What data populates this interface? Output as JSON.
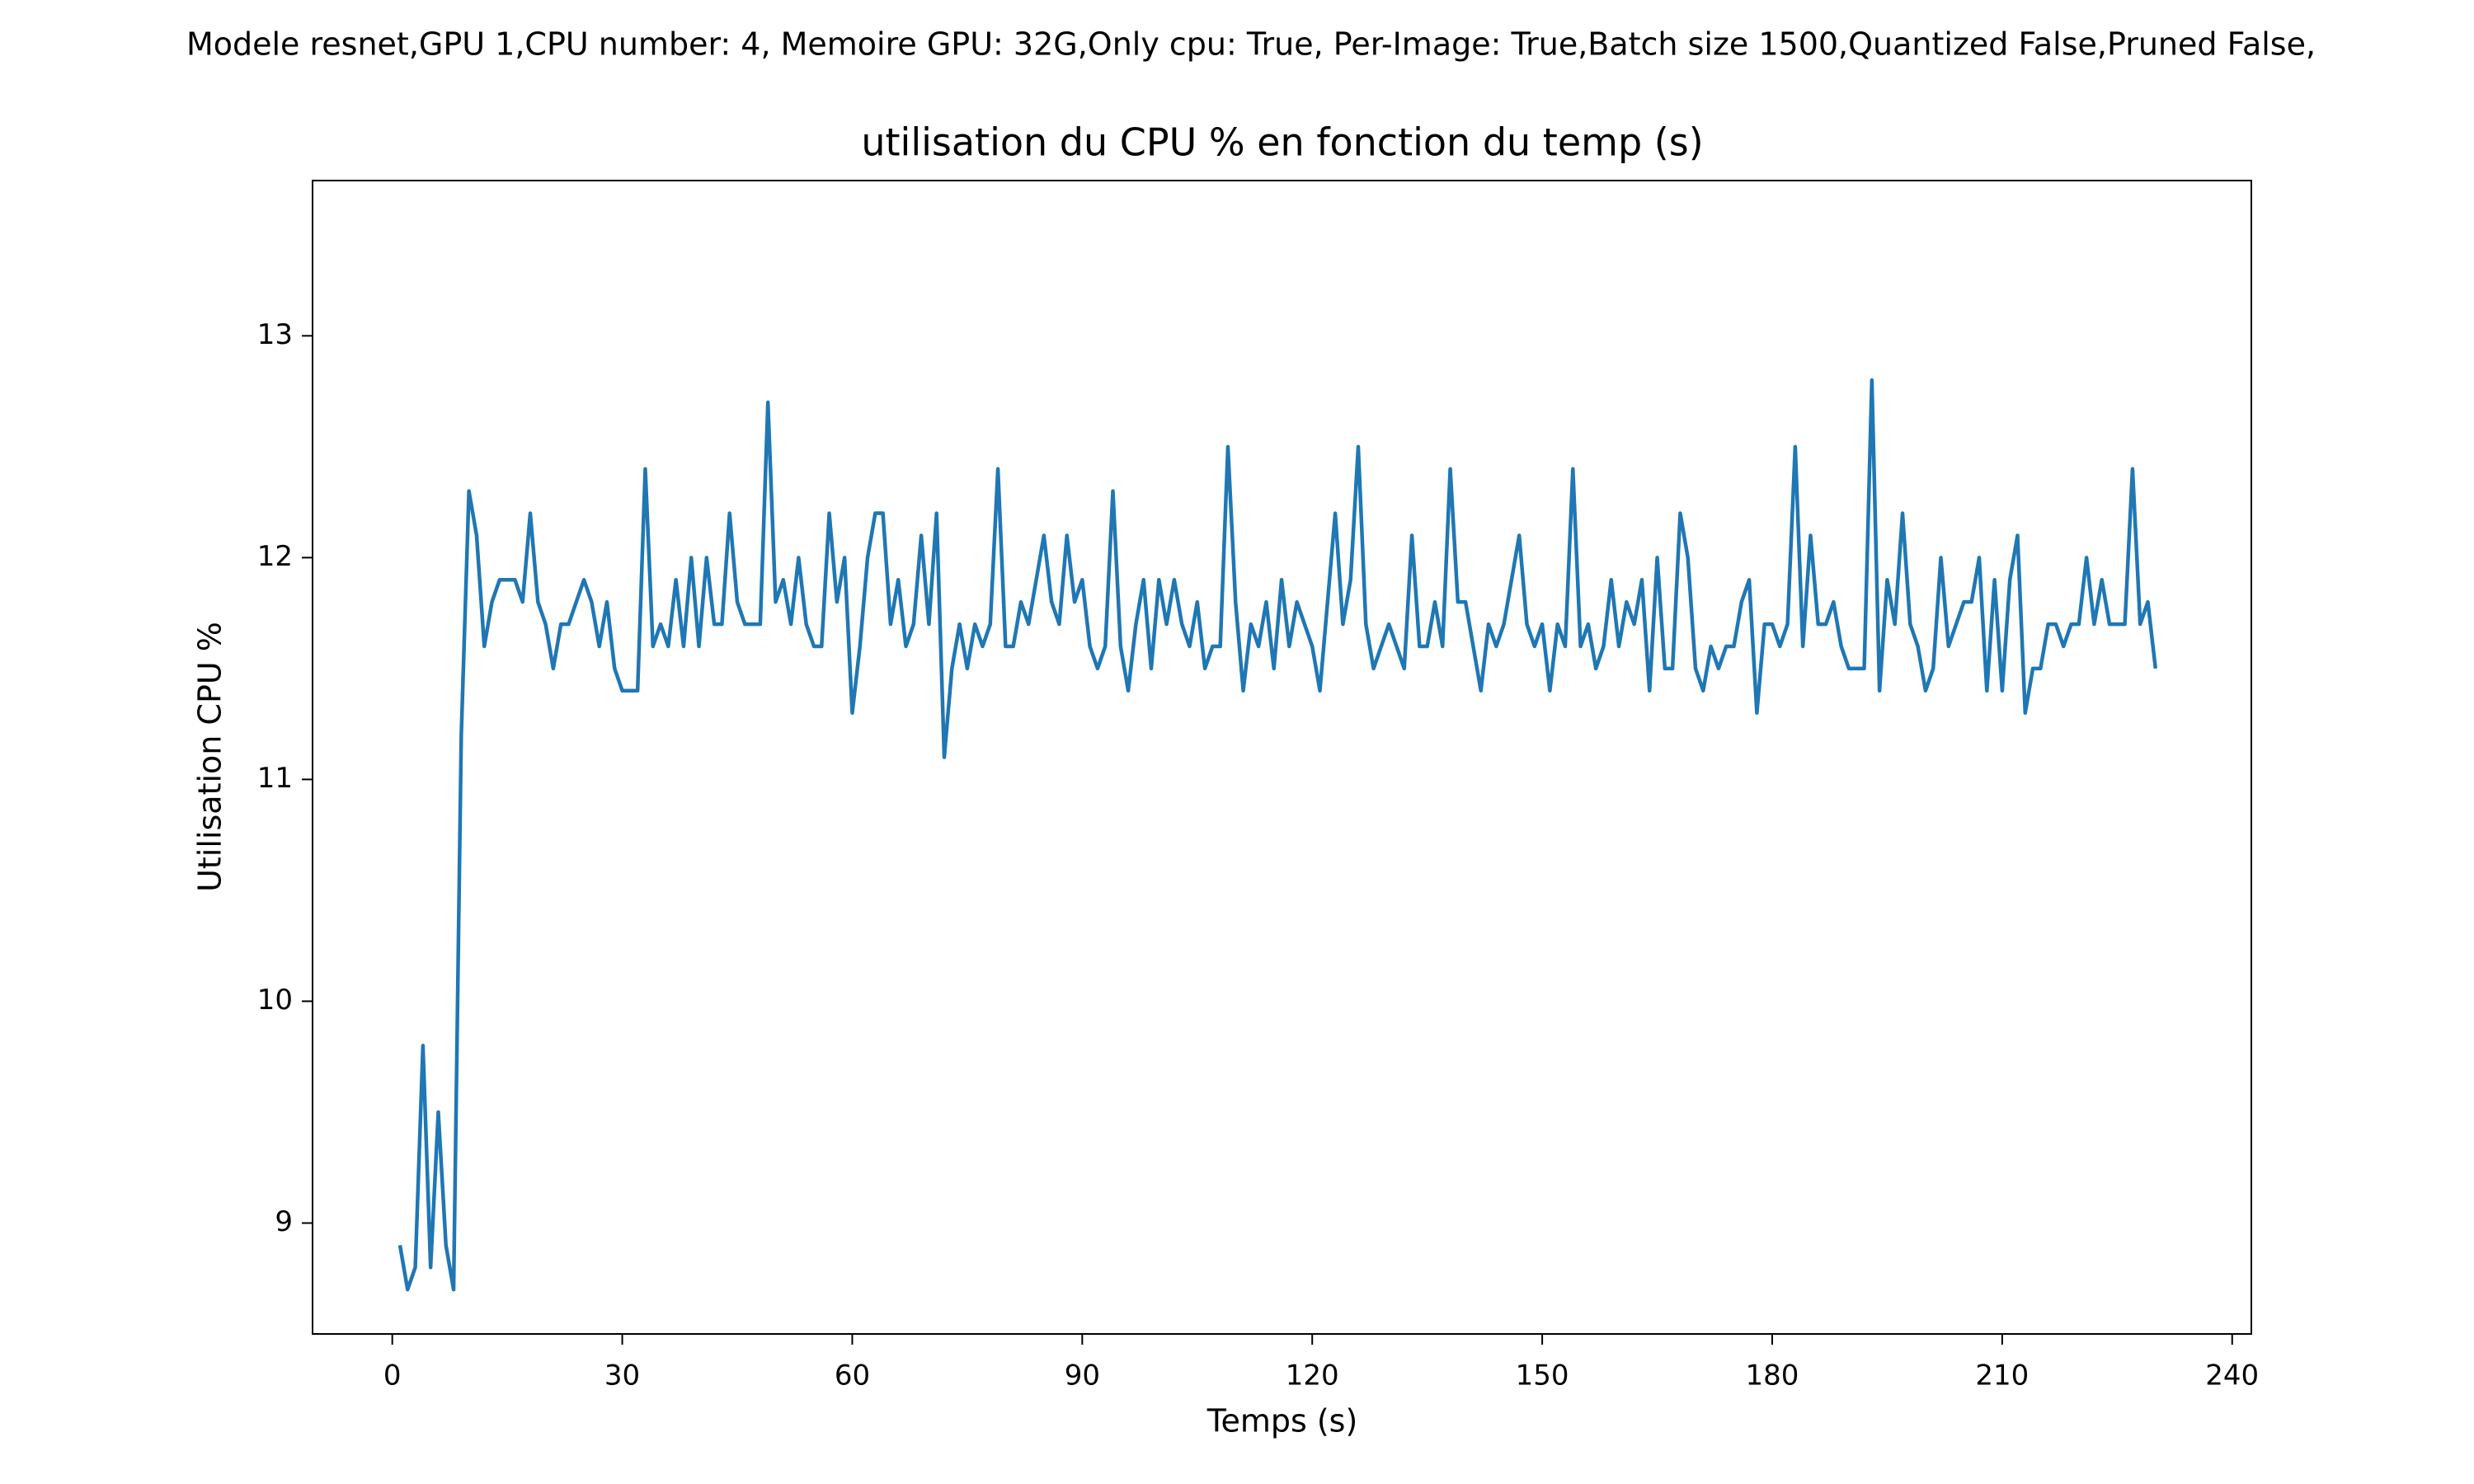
{
  "chart_data": {
    "type": "line",
    "suptitle": "Modele resnet,GPU 1,CPU number: 4, Memoire GPU: 32G,Only cpu: True, Per-Image: True,Batch size 1500,Quantized False,Pruned False,",
    "title": "utilisation du CPU % en fonction du temp (s)",
    "xlabel": "Temps (s)",
    "ylabel": "Utilisation CPU %",
    "color": "#1f77b4",
    "x": [
      1,
      2,
      3,
      4,
      5,
      6,
      7,
      8,
      9,
      10,
      11,
      12,
      13,
      14,
      15,
      16,
      17,
      18,
      19,
      20,
      21,
      22,
      23,
      24,
      25,
      26,
      27,
      28,
      29,
      30,
      31,
      32,
      33,
      34,
      35,
      36,
      37,
      38,
      39,
      40,
      41,
      42,
      43,
      44,
      45,
      46,
      47,
      48,
      49,
      50,
      51,
      52,
      53,
      54,
      55,
      56,
      57,
      58,
      59,
      60,
      61,
      62,
      63,
      64,
      65,
      66,
      67,
      68,
      69,
      70,
      71,
      72,
      73,
      74,
      75,
      76,
      77,
      78,
      79,
      80,
      81,
      82,
      83,
      84,
      85,
      86,
      87,
      88,
      89,
      90,
      91,
      92,
      93,
      94,
      95,
      96,
      97,
      98,
      99,
      100,
      101,
      102,
      103,
      104,
      105,
      106,
      107,
      108,
      109,
      110,
      111,
      112,
      113,
      114,
      115,
      116,
      117,
      118,
      119,
      120,
      121,
      122,
      123,
      124,
      125,
      126,
      127,
      128,
      129,
      130,
      131,
      132,
      133,
      134,
      135,
      136,
      137,
      138,
      139,
      140,
      141,
      142,
      143,
      144,
      145,
      146,
      147,
      148,
      149,
      150,
      151,
      152,
      153,
      154,
      155,
      156,
      157,
      158,
      159,
      160,
      161,
      162,
      163,
      164,
      165,
      166,
      167,
      168,
      169,
      170,
      171,
      172,
      173,
      174,
      175,
      176,
      177,
      178,
      179,
      180,
      181,
      182,
      183,
      184,
      185,
      186,
      187,
      188,
      189,
      190,
      191,
      192,
      193,
      194,
      195,
      196,
      197,
      198,
      199,
      200,
      201,
      202,
      203,
      204,
      205,
      206,
      207,
      208,
      209,
      210,
      211,
      212,
      213,
      214,
      215,
      216,
      217,
      218,
      219,
      220,
      221,
      222,
      223,
      224,
      225,
      226,
      227,
      228,
      229,
      230
    ],
    "values": [
      8.9,
      8.7,
      8.8,
      9.8,
      8.8,
      9.5,
      8.9,
      8.7,
      11.2,
      12.3,
      12.1,
      11.6,
      11.8,
      11.9,
      11.9,
      11.9,
      11.8,
      12.2,
      11.8,
      11.7,
      11.5,
      11.7,
      11.7,
      11.8,
      11.9,
      11.8,
      11.6,
      11.8,
      11.5,
      11.4,
      11.4,
      11.4,
      12.4,
      11.6,
      11.7,
      11.6,
      11.9,
      11.6,
      12.0,
      11.6,
      12.0,
      11.7,
      11.7,
      12.2,
      11.8,
      11.7,
      11.7,
      11.7,
      12.7,
      11.8,
      11.9,
      11.7,
      12.0,
      11.7,
      11.6,
      11.6,
      12.2,
      11.8,
      12.0,
      11.3,
      11.6,
      12.0,
      12.2,
      12.2,
      11.7,
      11.9,
      11.6,
      11.7,
      12.1,
      11.7,
      12.2,
      11.1,
      11.5,
      11.7,
      11.5,
      11.7,
      11.6,
      11.7,
      12.4,
      11.6,
      11.6,
      11.8,
      11.7,
      11.9,
      12.1,
      11.8,
      11.7,
      12.1,
      11.8,
      11.9,
      11.6,
      11.5,
      11.6,
      12.3,
      11.6,
      11.4,
      11.7,
      11.9,
      11.5,
      11.9,
      11.7,
      11.9,
      11.7,
      11.6,
      11.8,
      11.5,
      11.6,
      11.6,
      12.5,
      11.8,
      11.4,
      11.7,
      11.6,
      11.8,
      11.5,
      11.9,
      11.6,
      11.8,
      11.7,
      11.6,
      11.4,
      11.8,
      12.2,
      11.7,
      11.9,
      12.5,
      11.7,
      11.5,
      11.6,
      11.7,
      11.6,
      11.5,
      12.1,
      11.6,
      11.6,
      11.8,
      11.6,
      12.4,
      11.8,
      11.8,
      11.6,
      11.4,
      11.7,
      11.6,
      11.7,
      11.9,
      12.1,
      11.7,
      11.6,
      11.7,
      11.4,
      11.7,
      11.6,
      12.4,
      11.6,
      11.7,
      11.5,
      11.6,
      11.9,
      11.6,
      11.8,
      11.7,
      11.9,
      11.4,
      12.0,
      11.5,
      11.5,
      12.2,
      12.0,
      11.5,
      11.4,
      11.6,
      11.5,
      11.6,
      11.6,
      11.8,
      11.9,
      11.3,
      11.7,
      11.7,
      11.6,
      11.7,
      12.5,
      11.6,
      12.1,
      11.7,
      11.7,
      11.8,
      11.6,
      11.5,
      11.5,
      11.5,
      12.8,
      11.4,
      11.9,
      11.7,
      12.2,
      11.7,
      11.6,
      11.4,
      11.5,
      12.0,
      11.6,
      11.7,
      11.8,
      11.8,
      12.0,
      11.4,
      11.9,
      11.4,
      11.9,
      12.1,
      11.3,
      11.5,
      11.5,
      11.7,
      11.7,
      11.6,
      11.7,
      11.7,
      12.0,
      11.7,
      11.9,
      11.7,
      11.7,
      11.7,
      12.4,
      11.7,
      11.8,
      11.5
    ],
    "xlim": [
      -10.4,
      242.5
    ],
    "ylim": [
      8.5,
      13.7
    ],
    "xticks": [
      0,
      30,
      60,
      90,
      120,
      150,
      180,
      210,
      240
    ],
    "yticks": [
      9,
      10,
      11,
      12,
      13
    ]
  }
}
